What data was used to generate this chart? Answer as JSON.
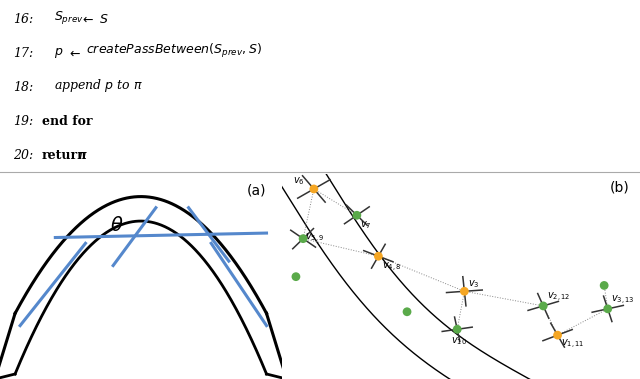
{
  "fig_width": 6.4,
  "fig_height": 3.79,
  "dpi": 100,
  "bg_color": "#ffffff",
  "teal_bg": "#b8d8d8",
  "orange_color": "#f5a623",
  "green_color": "#5aaa4a",
  "dark_gray": "#333333",
  "blue_color": "#5588cc",
  "text_lines": [
    {
      "num": "16:",
      "indent": true,
      "text": "S_{prev} \\leftarrow S",
      "bold_text": ""
    },
    {
      "num": "17:",
      "indent": true,
      "text": "p \\leftarrow createPassBetween(S_{prev},S)",
      "bold_text": ""
    },
    {
      "num": "18:",
      "indent": true,
      "text": "append p to \\pi",
      "bold_text": ""
    },
    {
      "num": "19:",
      "indent": false,
      "text": "",
      "bold_text": "end for"
    },
    {
      "num": "20:",
      "indent": false,
      "text": "\\pi",
      "bold_text": "return "
    }
  ],
  "label_a": "(a)",
  "label_b": "(b)"
}
